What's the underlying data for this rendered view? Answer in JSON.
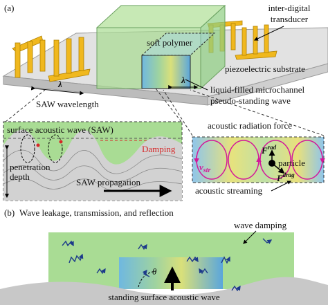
{
  "panel_a": {
    "label": "(a)",
    "idt_label": [
      "inter-digital",
      "transducer"
    ],
    "polymer_label": "soft polymer",
    "substrate_label": "piezoelectric substrate",
    "wavelength_symbol": "λ",
    "channel_label": "liquid-filled microchannel",
    "wave_label": "pseudo-standing wave",
    "saw_wavelength": "SAW wavelength",
    "inset_left": {
      "title": "surface acoustic wave (SAW)",
      "damping": "Damping",
      "penetration": [
        "penetration",
        "depth"
      ],
      "propagation": "SAW propagation"
    },
    "inset_right": {
      "title": "acoustic radiation force",
      "f_rad": {
        "symbol": "F",
        "sup": "rad"
      },
      "particle": "particle",
      "f_drag": {
        "symbol": "F",
        "sup": "drag"
      },
      "v_str": {
        "symbol": "v",
        "sub": "str"
      },
      "streaming": "acoustic streaming"
    }
  },
  "panel_b": {
    "label": "(b)",
    "title": "Wave leakage, transmission, and reflection",
    "wave_damping": "wave damping",
    "angle": "θ",
    "substrate_label": "standing surface acoustic wave"
  }
}
